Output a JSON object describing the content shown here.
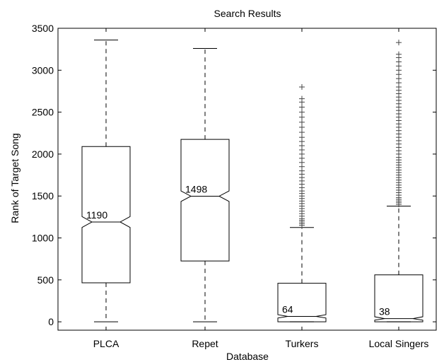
{
  "chart_data": {
    "type": "boxplot",
    "title": "Search Results",
    "xlabel": "Database",
    "ylabel": "Rank of Target Song",
    "ylim": [
      -100,
      3500
    ],
    "yticks": [
      0,
      500,
      1000,
      1500,
      2000,
      2500,
      3000,
      3500
    ],
    "notched": true,
    "grid": false,
    "categories": [
      "PLCA",
      "Repet",
      "Turkers",
      "Local Singers"
    ],
    "boxes": [
      {
        "name": "PLCA",
        "whisker_low": 0,
        "q1": 465,
        "median": 1190,
        "q3": 2090,
        "whisker_high": 3360,
        "notch_low": 1125,
        "notch_high": 1255,
        "median_label": "1190",
        "outliers": []
      },
      {
        "name": "Repet",
        "whisker_low": 0,
        "q1": 725,
        "median": 1498,
        "q3": 2175,
        "whisker_high": 3260,
        "notch_low": 1435,
        "notch_high": 1560,
        "median_label": "1498",
        "outliers": []
      },
      {
        "name": "Turkers",
        "whisker_low": 0,
        "q1": 0,
        "median": 64,
        "q3": 460,
        "whisker_high": 1125,
        "notch_low": 45,
        "notch_high": 85,
        "median_label": "64",
        "outliers": [
          1150,
          1170,
          1190,
          1210,
          1230,
          1260,
          1290,
          1320,
          1350,
          1380,
          1410,
          1440,
          1470,
          1500,
          1530,
          1560,
          1600,
          1640,
          1680,
          1720,
          1760,
          1800,
          1850,
          1900,
          1950,
          2000,
          2050,
          2100,
          2150,
          2200,
          2260,
          2320,
          2380,
          2440,
          2500,
          2560,
          2620,
          2660,
          2800
        ]
      },
      {
        "name": "Local Singers",
        "whisker_low": 0,
        "q1": 0,
        "median": 38,
        "q3": 560,
        "whisker_high": 1380,
        "notch_low": 20,
        "notch_high": 60,
        "median_label": "38",
        "outliers": [
          1400,
          1420,
          1440,
          1460,
          1480,
          1510,
          1540,
          1570,
          1600,
          1630,
          1660,
          1690,
          1720,
          1750,
          1780,
          1810,
          1840,
          1870,
          1900,
          1930,
          1960,
          2000,
          2040,
          2080,
          2120,
          2160,
          2200,
          2240,
          2280,
          2320,
          2360,
          2400,
          2440,
          2480,
          2520,
          2560,
          2600,
          2640,
          2680,
          2720,
          2760,
          2800,
          2850,
          2900,
          2950,
          3000,
          3050,
          3100,
          3150,
          3190,
          3330
        ]
      }
    ]
  }
}
